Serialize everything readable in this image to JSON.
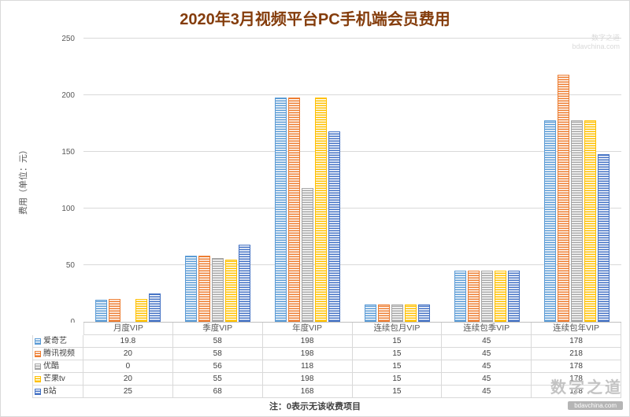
{
  "title": "2020年3月视频平台PC手机端会员费用",
  "note": "注：0表示无该收费项目",
  "y_axis_label": "费用（单位：元）",
  "watermark": {
    "top_line1": "数字之道",
    "top_line2": "bdavchina.com",
    "bottom_main": "数字之道",
    "bottom_sub": "bdavchina.com"
  },
  "chart_data": {
    "type": "bar",
    "title": "2020年3月视频平台PC手机端会员费用",
    "xlabel": "",
    "ylabel": "费用（单位：元）",
    "ylim": [
      0,
      250
    ],
    "yticks": [
      0,
      50,
      100,
      150,
      200,
      250
    ],
    "grid": true,
    "legend_position": "table-below",
    "categories": [
      "月度VIP",
      "季度VIP",
      "年度VIP",
      "连续包月VIP",
      "连续包季VIP",
      "连续包年VIP"
    ],
    "series": [
      {
        "name": "爱奇艺",
        "color": "#5B9BD5",
        "values": [
          19.8,
          58,
          198,
          15,
          45,
          178
        ]
      },
      {
        "name": "腾讯视频",
        "color": "#ED7D31",
        "values": [
          20,
          58,
          198,
          15,
          45,
          218
        ]
      },
      {
        "name": "优酷",
        "color": "#A5A5A5",
        "values": [
          0,
          56,
          118,
          15,
          45,
          178
        ]
      },
      {
        "name": "芒果tv",
        "color": "#FFC000",
        "values": [
          20,
          55,
          198,
          15,
          45,
          178
        ]
      },
      {
        "name": "B站",
        "color": "#4472C4",
        "values": [
          25,
          68,
          168,
          15,
          45,
          148
        ]
      }
    ]
  }
}
